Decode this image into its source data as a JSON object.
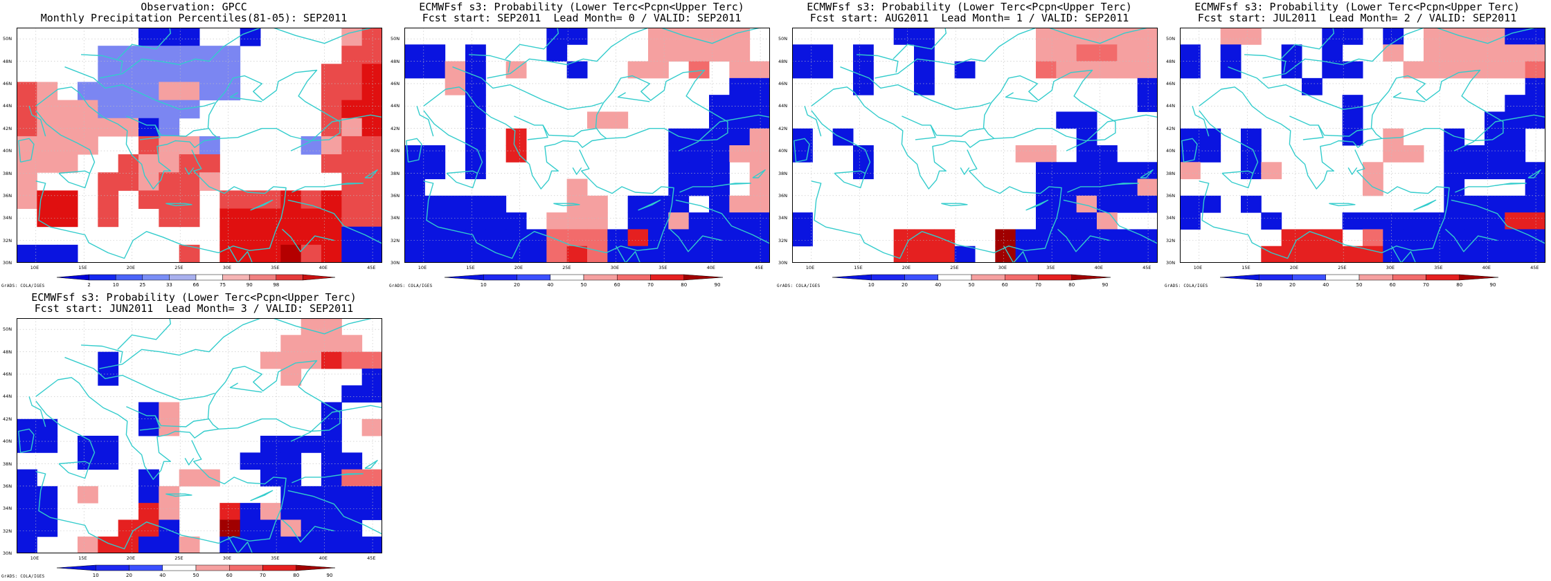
{
  "lon_ticks": [
    "10E",
    "15E",
    "20E",
    "25E",
    "30E",
    "35E",
    "40E",
    "45E"
  ],
  "lat_ticks": [
    "30N",
    "32N",
    "34N",
    "36N",
    "38N",
    "40N",
    "42N",
    "44N",
    "46N",
    "48N",
    "50N"
  ],
  "credit": "GrADS: COLA/IGES",
  "colors": {
    "boundary": "#33cccc",
    "grid": "#bfbfbf",
    "scale_blue": [
      "#0a14e0",
      "#1e28f0",
      "#3c50ff"
    ],
    "scale_red": [
      "#f5a0a0",
      "#f26b6b",
      "#e52020",
      "#a00000"
    ]
  },
  "panels": [
    {
      "title1": "Observation: GPCC",
      "title2": "Monthly Precipitation Percentiles(81-05): SEP2011",
      "colorbar_type": "percentile",
      "colorbar_labels": [
        "2",
        "10",
        "25",
        "33",
        "66",
        "75",
        "90",
        "98"
      ],
      "colorbar_colors": [
        "#0000d8",
        "#1428f0",
        "#4a64f8",
        "#7a8ef6",
        "#a8b0ee",
        "#ffffff",
        "#f5b4b4",
        "#f08080",
        "#e53a3a",
        "#c81010"
      ],
      "grid_rows": [
        "WWWWWWVVVWWVWWWWSR",
        "WWWWUUUUUUUWWWWWRR",
        "WWWWUUUUUUUWWWWRRX",
        "RSWUUUUSSUUWWWWRRX",
        "RSSSUUUUUWWWWWWRXX",
        "RSSSSSVUWWWWWWWRSX",
        "SSSSWWRSSUWWWWUSRR",
        "SSSWWRSSRRWWWWWRRR",
        "SWWWRRSRRSWWWWWWRR",
        "SXXWRWRRRWRRRXRXRR",
        "WXXWRWWRRWXXXXXXRR",
        "WWWWWWWWWWXXXXXXVV",
        "VVVWWWWWRWXXXYRXVV"
      ]
    },
    {
      "title1": "ECMWFsf s3: Probability (Lower Terc<Pcpn<Upper Terc)",
      "title2": "Fcst start: SEP2011  Lead Month= 0 / VALID: SEP2011",
      "colorbar_type": "probability",
      "colorbar_labels": [
        "10",
        "20",
        "40",
        "50",
        "60",
        "70",
        "80",
        "90"
      ],
      "colorbar_colors": [
        "#0a14e0",
        "#1e28f0",
        "#3c50ff",
        "#ffffff",
        "#f5a0a0",
        "#f26b6b",
        "#e52020",
        "#a00000"
      ],
      "grid_rows": [
        "WWWWWWWVVWWWAAAAAW",
        "VVWVWWWVWWWWAAAAAW",
        "VVAVWAWWVWWAAWBWAA",
        "WWAVWWWWWWWWWWWWVV",
        "WWWVWWWWWWWWWWWVVV",
        "WWWVWWWWWAAWWWWVVV",
        "WWWVWCWWWWWWWVVVVA",
        "VVWVWCWWWWWWWVVVAA",
        "VVWVWWWWWWWWWVVVWA",
        "VWWWWWWWAWWWWVVVWA",
        "VVVVVWWWAAWVVVWVAA",
        "VVVVVVWAAAWVVAVVVV",
        "VVVVVVVBBBVCVVVVVV",
        "VVVVVVVBCBVVVVVVVV"
      ]
    },
    {
      "title1": "ECMWFsf s3: Probability (Lower Terc<Pcpn<Upper Terc)",
      "title2": "Fcst start: AUG2011  Lead Month= 1 / VALID: SEP2011",
      "colorbar_type": "probability",
      "colorbar_labels": [
        "10",
        "20",
        "40",
        "50",
        "60",
        "70",
        "80",
        "90"
      ],
      "colorbar_colors": [
        "#0a14e0",
        "#1e28f0",
        "#3c50ff",
        "#ffffff",
        "#f5a0a0",
        "#f26b6b",
        "#e52020",
        "#a00000"
      ],
      "grid_rows": [
        "WWWWWVVWWWWWAAAAAA",
        "VVWVWWVWWWWWAABBAA",
        "VVWVWWVWVWWWBAAAAA",
        "WWWVWWVWWWWWWWWWWV",
        "WWWWWWWWWWWWWWWWWV",
        "WWWWWWWWWWWWWVVWWW",
        "VWVWWWWWWWWWWWVWWW",
        "VWWVWWWWWWWAAWVVWW",
        "WWWVWWWWWWWWVVVVVV",
        "WWWWWWWWWWWWVVVVVA",
        "WWWWWWWWWWWWVVAVVV",
        "VWWWWWWWWWWWVVVAWW",
        "VWWWWCCCWWDVVVVVVV",
        "WWWWWCCCVWDVVVVVVV"
      ]
    },
    {
      "title1": "ECMWFsf s3: Probability (Lower Terc<Pcpn<Upper Terc)",
      "title2": "Fcst start: JUL2011  Lead Month= 2 / VALID: SEP2011",
      "colorbar_type": "probability",
      "colorbar_labels": [
        "10",
        "20",
        "40",
        "50",
        "60",
        "70",
        "80",
        "90"
      ],
      "colorbar_colors": [
        "#0a14e0",
        "#1e28f0",
        "#3c50ff",
        "#ffffff",
        "#f5a0a0",
        "#f26b6b",
        "#e52020",
        "#a00000"
      ],
      "grid_rows": [
        "WWAAWWWVVWVWAAAAVV",
        "VWVWWVWVWWAWAAAAAA",
        "VWVWWVWVVWWAAAAAAB",
        "WWWWWWVWWWWWWWWWWV",
        "WWWWWWWWVWWWWWWWVV",
        "WWWWWWWWVWWWWWWVVV",
        "VVWVWWWWVWAWWVWVVW",
        "VVWVWWWWWWAAWVVVVW",
        "AWWVAWWWWAWWWVVVVV",
        "WWWWWWWWWAWWWVWWWV",
        "VVWVWWWWWWWWWVVVVV",
        "VWWWVWWWVVVVVVVVCC",
        "WWWWWCCCWBVVVVVVVV",
        "WWWWCCCCCCVVVVVVVV"
      ]
    },
    {
      "title1": "ECMWFsf s3: Probability (Lower Terc<Pcpn<Upper Terc)",
      "title2": "Fcst start: JUN2011  Lead Month= 3 / VALID: SEP2011",
      "colorbar_type": "probability",
      "colorbar_labels": [
        "10",
        "20",
        "40",
        "50",
        "60",
        "70",
        "80",
        "90"
      ],
      "colorbar_colors": [
        "#0a14e0",
        "#1e28f0",
        "#3c50ff",
        "#ffffff",
        "#f5a0a0",
        "#f26b6b",
        "#e52020",
        "#a00000"
      ],
      "grid_rows": [
        "WWWWWWWWWWWWWWAAWW",
        "WWWWWWWWWWWWWAAAAW",
        "WWWWVWWWWWWWAAACBB",
        "WWWWVWWWWWWWWAWWWV",
        "WWWWWWWWWWWWWWWWVV",
        "WWWWWWVAWWWWWWWVWW",
        "VVWWWWVAWWWWWWWVWA",
        "VVWVVWWWWWWWVVVVWW",
        "WWWVVWWWWWWVVVWVVW",
        "VWWWWWVWAAWWVVWVBB",
        "VVWAWWVAWWWWWVVVVV",
        "VVWWWWCAWWCVAVVVVV",
        "VVWWWCCVWWDVVAVVVW",
        "VWWACCVVAWVVVVVVVV"
      ]
    }
  ]
}
